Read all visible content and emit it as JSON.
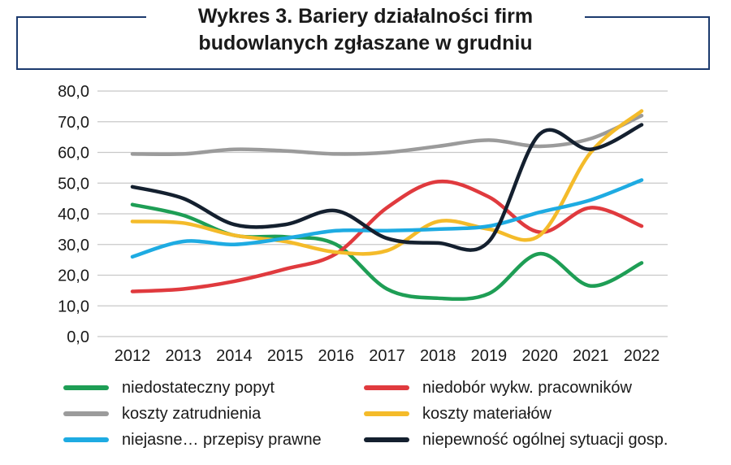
{
  "title": {
    "line1": "Wykres 3. Bariery działalności firm",
    "line2": "budowlanych zgłaszane w grudniu"
  },
  "chart_data": {
    "type": "line",
    "title": "Wykres 3. Bariery działalności firm budowlanych zgłaszane w grudniu",
    "xlabel": "",
    "ylabel": "",
    "x": [
      "2012",
      "2013",
      "2014",
      "2015",
      "2016",
      "2017",
      "2018",
      "2019",
      "2020",
      "2021",
      "2022"
    ],
    "ylim": [
      0,
      80
    ],
    "yticks": [
      "0,0",
      "10,0",
      "20,0",
      "30,0",
      "40,0",
      "50,0",
      "60,0",
      "70,0",
      "80,0"
    ],
    "grid": "horizontal",
    "legend_position": "bottom",
    "series": [
      {
        "name": "niedostateczny popyt",
        "color": "#1e9e55",
        "values": [
          43,
          39.5,
          33,
          32.5,
          30,
          15.5,
          12.5,
          14,
          27,
          16.5,
          24
        ]
      },
      {
        "name": "niedobór wykw. pracowników",
        "color": "#e03a3e",
        "values": [
          14.7,
          15.5,
          18,
          22,
          27,
          42,
          50.5,
          45.5,
          34,
          42,
          36
        ]
      },
      {
        "name": "koszty zatrudnienia",
        "color": "#9b9b9b",
        "values": [
          59.5,
          59.5,
          61,
          60.5,
          59.5,
          60,
          62,
          64,
          62,
          64.5,
          72
        ]
      },
      {
        "name": "koszty materiałów",
        "color": "#f4bb2a",
        "values": [
          37.5,
          37,
          33,
          31,
          27.5,
          28,
          37.5,
          35,
          33,
          60,
          73.5
        ]
      },
      {
        "name": "niejasne… przepisy prawne",
        "color": "#1eabe2",
        "values": [
          26,
          31,
          30,
          32,
          34.5,
          34.5,
          35,
          36,
          40.5,
          44.5,
          51
        ]
      },
      {
        "name": "niepewność ogólnej sytuacji gosp.",
        "color": "#14202f",
        "values": [
          48.8,
          45,
          36.5,
          36.5,
          41,
          32,
          30.5,
          31,
          66,
          61,
          69
        ]
      }
    ]
  }
}
